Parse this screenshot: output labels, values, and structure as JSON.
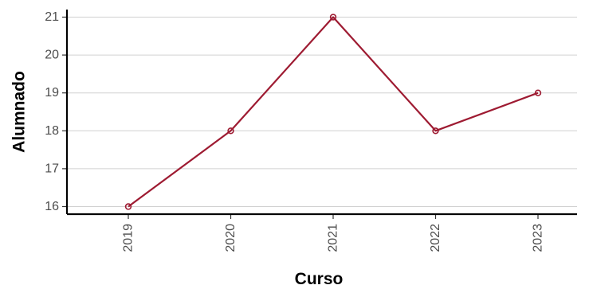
{
  "chart_data": {
    "type": "line",
    "title": "",
    "xlabel": "Curso",
    "ylabel": "Alumnado",
    "categories": [
      "2019",
      "2020",
      "2021",
      "2022",
      "2023"
    ],
    "series": [
      {
        "values": [
          16,
          18,
          21,
          18,
          19
        ],
        "color": "#9e1b32"
      }
    ],
    "y_ticks": [
      16,
      17,
      18,
      19,
      20,
      21
    ],
    "ylim": [
      15.8,
      21.2
    ],
    "grid": "horizontal",
    "legend": "none",
    "x_tick_rotation": "vertical"
  }
}
